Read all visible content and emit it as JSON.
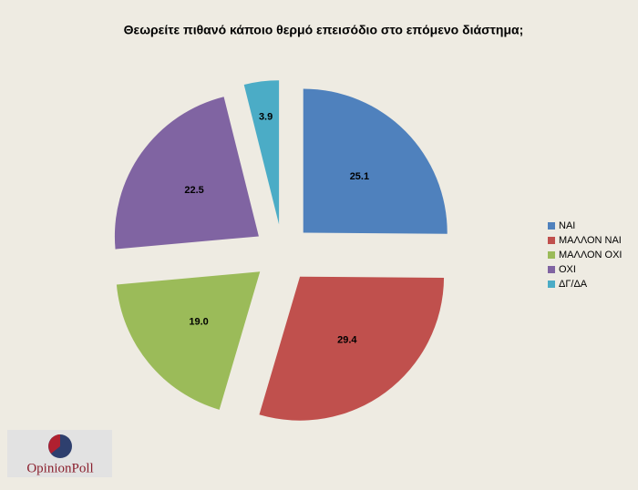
{
  "chart_data": {
    "type": "pie",
    "title": "Θεωρείτε πιθανό κάποιο θερμό επεισόδιο στο επόμενο διάστημα;",
    "categories": [
      "ΝΑΙ",
      "ΜΑΛΛΟΝ ΝΑΙ",
      "ΜΑΛΛΟΝ ΟΧΙ",
      "ΟΧΙ",
      "ΔΓ/ΔΑ"
    ],
    "values": [
      25.1,
      29.4,
      19.0,
      22.5,
      3.9
    ],
    "value_labels": [
      "25.1",
      "29.4",
      "19.0",
      "22.5",
      "3.9"
    ],
    "colors": [
      "#4f81bd",
      "#c0504d",
      "#9bbb59",
      "#8064a2",
      "#4bacc6"
    ],
    "legend": "right",
    "logo": "OpinionPoll"
  }
}
